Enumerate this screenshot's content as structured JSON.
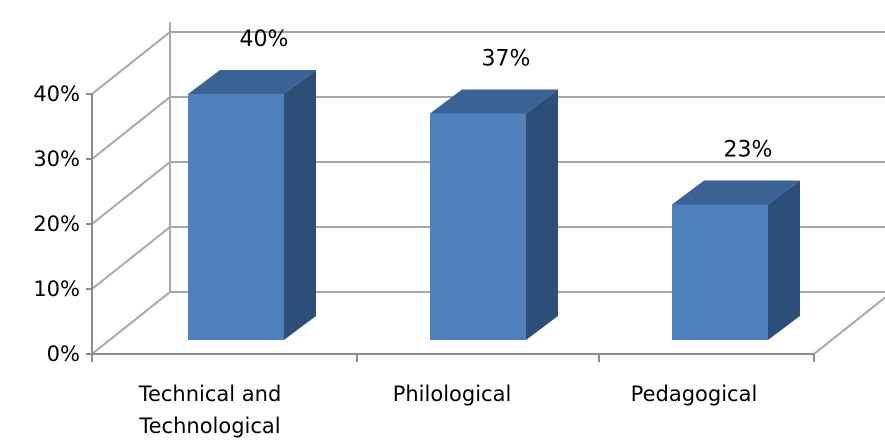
{
  "chart_data": {
    "type": "bar",
    "categories": [
      "Technical and Technological",
      "Philological",
      "Pedagogical"
    ],
    "category_label_lines": [
      [
        "Technical and",
        "Technological"
      ],
      [
        "Philological"
      ],
      [
        "Pedagogical"
      ]
    ],
    "values": [
      40,
      37,
      23
    ],
    "data_labels": [
      "40%",
      "37%",
      "23%"
    ],
    "yticks": [
      0,
      10,
      20,
      30,
      40
    ],
    "ytick_labels": [
      "0%",
      "10%",
      "20%",
      "30%",
      "40%"
    ],
    "ylim": [
      0,
      40
    ],
    "grid": true,
    "style": "3d-column",
    "colors": {
      "front": "#4f81bd",
      "side": "#2c4e78",
      "top": "#3b6294",
      "grid": "#a6a6a6",
      "axis": "#8c8c8c"
    }
  }
}
